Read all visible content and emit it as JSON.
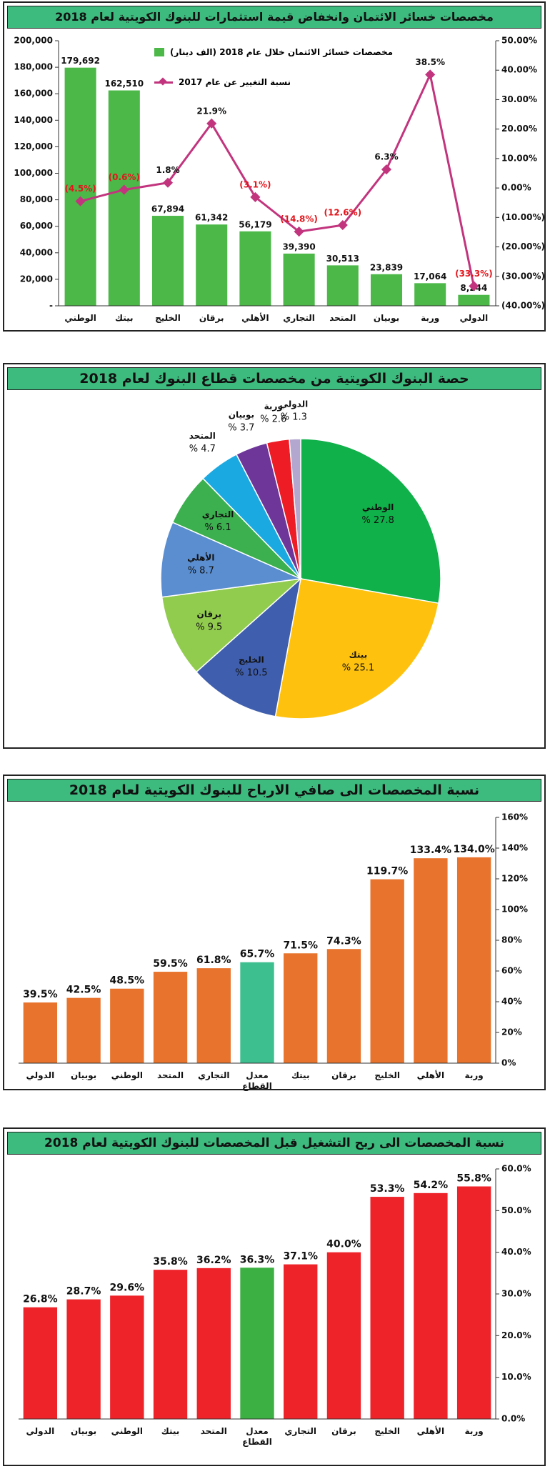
{
  "chart_data": [
    {
      "type": "combo",
      "title": "مخصصات خسائر الائتمان وانخفاض قيمة استثمارات للبنوك الكويتية لعام 2018",
      "categories": [
        "الوطني",
        "بيتك",
        "الخليج",
        "برقان",
        "الأهلي",
        "التجاري",
        "المتحد",
        "بوبيان",
        "وربة",
        "الدولي"
      ],
      "series": [
        {
          "name": "مخصصات خسائر الائتمان خلال عام 2018 (الف دينار)",
          "type": "bar",
          "color": "#4cb848",
          "values": [
            179692,
            162510,
            67894,
            61342,
            56179,
            39390,
            30513,
            23839,
            17064,
            8244
          ],
          "value_labels": [
            "179,692",
            "162,510",
            "67,894",
            "61,342",
            "56,179",
            "39,390",
            "30,513",
            "23,839",
            "17,064",
            "8,244"
          ]
        },
        {
          "name": "نسبة التغيير عن عام 2017",
          "type": "line",
          "axis": "y2",
          "color": "#c2357e",
          "values": [
            -4.5,
            -0.6,
            1.8,
            21.9,
            -3.1,
            -14.8,
            -12.6,
            6.3,
            38.5,
            -33.3
          ],
          "value_labels": [
            "(4.5%)",
            "(0.6%)",
            "1.8%",
            "21.9%",
            "(3.1%)",
            "(14.8%)",
            "(12.6%)",
            "6.3%",
            "38.5%",
            "(33.3%)"
          ]
        }
      ],
      "ylim": [
        0,
        200000
      ],
      "yticks": [
        {
          "value": 0,
          "label": "-"
        },
        {
          "value": 20000,
          "label": "20,000"
        },
        {
          "value": 40000,
          "label": "40,000"
        },
        {
          "value": 60000,
          "label": "60,000"
        },
        {
          "value": 80000,
          "label": "80,000"
        },
        {
          "value": 100000,
          "label": "100,000"
        },
        {
          "value": 120000,
          "label": "120,000"
        },
        {
          "value": 140000,
          "label": "140,000"
        },
        {
          "value": 160000,
          "label": "160,000"
        },
        {
          "value": 180000,
          "label": "180,000"
        },
        {
          "value": 200000,
          "label": "200,000"
        }
      ],
      "y2lim": [
        -40,
        50
      ],
      "y2ticks": [
        {
          "value": -40,
          "label": "(40.00%)"
        },
        {
          "value": -30,
          "label": "(30.00%)"
        },
        {
          "value": -20,
          "label": "(20.00%)"
        },
        {
          "value": -10,
          "label": "(10.00%)"
        },
        {
          "value": 0,
          "label": "0.00%"
        },
        {
          "value": 10,
          "label": "10.00%"
        },
        {
          "value": 20,
          "label": "20.00%"
        },
        {
          "value": 30,
          "label": "30.00%"
        },
        {
          "value": 40,
          "label": "40.00%"
        },
        {
          "value": 50,
          "label": "50.00%"
        }
      ]
    },
    {
      "type": "pie",
      "title": "حصة البنوك الكويتية من مخصصات قطاع البنوك لعام 2018",
      "categories": [
        "الوطني",
        "بيتك",
        "الخليج",
        "برقان",
        "الأهلي",
        "التجاري",
        "المتحد",
        "بوبيان",
        "وربة",
        "الدولي"
      ],
      "values": [
        27.8,
        25.1,
        10.5,
        9.5,
        8.7,
        6.1,
        4.7,
        3.7,
        2.6,
        1.3
      ],
      "value_labels": [
        "% 27.8",
        "% 25.1",
        "% 10.5",
        "% 9.5",
        "% 8.7",
        "% 6.1",
        "% 4.7",
        "% 3.7",
        "% 2.6",
        "% 1.3"
      ],
      "colors": [
        "#10b04a",
        "#fec20e",
        "#3f5fae",
        "#92cc4f",
        "#5b8ed0",
        "#3caf4f",
        "#1ba9e1",
        "#6e3699",
        "#ee1c25",
        "#b3a6cf"
      ]
    },
    {
      "type": "bar",
      "title": "نسبة المخصصات الى صافي الارباح للبنوك الكويتية لعام 2018",
      "categories": [
        "الدولي",
        "بوبيان",
        "الوطني",
        "المتحد",
        "التجاري",
        "معدل القطاع",
        "بيتك",
        "برقان",
        "الخليج",
        "الأهلي",
        "وربة"
      ],
      "values": [
        39.5,
        42.5,
        48.5,
        59.5,
        61.8,
        65.7,
        71.5,
        74.3,
        119.7,
        133.4,
        134.0
      ],
      "value_labels": [
        "39.5%",
        "42.5%",
        "48.5%",
        "59.5%",
        "61.8%",
        "65.7%",
        "71.5%",
        "74.3%",
        "119.7%",
        "133.4%",
        "134.0%"
      ],
      "colors": [
        "#e8732c",
        "#e8732c",
        "#e8732c",
        "#e8732c",
        "#e8732c",
        "#3dbf8f",
        "#e8732c",
        "#e8732c",
        "#e8732c",
        "#e8732c",
        "#e8732c"
      ],
      "ylim": [
        0,
        160
      ],
      "yticks": [
        {
          "value": 0,
          "label": "0%"
        },
        {
          "value": 20,
          "label": "20%"
        },
        {
          "value": 40,
          "label": "40%"
        },
        {
          "value": 60,
          "label": "60%"
        },
        {
          "value": 80,
          "label": "80%"
        },
        {
          "value": 100,
          "label": "100%"
        },
        {
          "value": 120,
          "label": "120%"
        },
        {
          "value": 140,
          "label": "140%"
        },
        {
          "value": 160,
          "label": "160%"
        }
      ]
    },
    {
      "type": "bar",
      "title": "نسبة المخصصات الى ربح التشغيل قبل المخصصات للبنوك الكويتية لعام 2018",
      "categories": [
        "الدولي",
        "بوبيان",
        "الوطني",
        "بيتك",
        "المتحد",
        "معدل القطاع",
        "التجاري",
        "برقان",
        "الخليج",
        "الأهلي",
        "وربة"
      ],
      "values": [
        26.8,
        28.7,
        29.6,
        35.8,
        36.2,
        36.3,
        37.1,
        40.0,
        53.3,
        54.2,
        55.8
      ],
      "value_labels": [
        "26.8%",
        "28.7%",
        "29.6%",
        "35.8%",
        "36.2%",
        "36.3%",
        "37.1%",
        "40.0%",
        "53.3%",
        "54.2%",
        "55.8%"
      ],
      "colors": [
        "#ee2229",
        "#ee2229",
        "#ee2229",
        "#ee2229",
        "#ee2229",
        "#3cb043",
        "#ee2229",
        "#ee2229",
        "#ee2229",
        "#ee2229",
        "#ee2229"
      ],
      "ylim": [
        0,
        60
      ],
      "yticks": [
        {
          "value": 0,
          "label": "0.0%"
        },
        {
          "value": 10,
          "label": "10.0%"
        },
        {
          "value": 20,
          "label": "20.0%"
        },
        {
          "value": 30,
          "label": "30.0%"
        },
        {
          "value": 40,
          "label": "40.0%"
        },
        {
          "value": 50,
          "label": "50.0%"
        },
        {
          "value": 60,
          "label": "60.0%"
        }
      ]
    }
  ]
}
